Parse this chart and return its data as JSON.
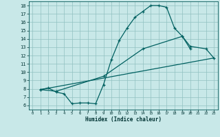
{
  "xlabel": "Humidex (Indice chaleur)",
  "bg_color": "#c8e8e8",
  "grid_color": "#90c0c0",
  "line_color": "#006060",
  "xlim": [
    -0.5,
    23.5
  ],
  "ylim": [
    5.5,
    18.5
  ],
  "xticks": [
    0,
    1,
    2,
    3,
    4,
    5,
    6,
    7,
    8,
    9,
    10,
    11,
    12,
    13,
    14,
    15,
    16,
    17,
    18,
    19,
    20,
    21,
    22,
    23
  ],
  "yticks": [
    6,
    7,
    8,
    9,
    10,
    11,
    12,
    13,
    14,
    15,
    16,
    17,
    18
  ],
  "line1_x": [
    1,
    2,
    3,
    4,
    5,
    6,
    7,
    8,
    9,
    10,
    11,
    12,
    13,
    14,
    15,
    16,
    17,
    18,
    19,
    20
  ],
  "line1_y": [
    7.9,
    8.1,
    7.6,
    7.4,
    6.2,
    6.3,
    6.3,
    6.2,
    8.5,
    11.5,
    13.8,
    15.3,
    16.6,
    17.3,
    18.0,
    18.0,
    17.8,
    15.3,
    14.3,
    12.8
  ],
  "line2_x": [
    1,
    3,
    9,
    14,
    19,
    20,
    22,
    23
  ],
  "line2_y": [
    7.9,
    7.7,
    9.5,
    12.8,
    14.3,
    13.1,
    12.8,
    11.7
  ],
  "line3_x": [
    1,
    23
  ],
  "line3_y": [
    7.9,
    11.7
  ]
}
